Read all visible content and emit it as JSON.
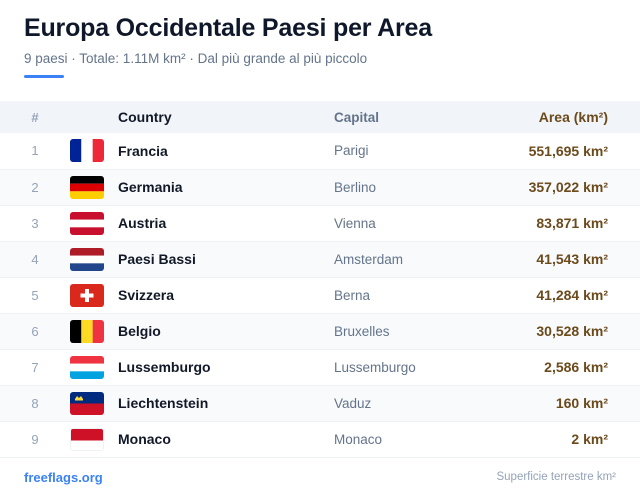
{
  "header": {
    "title": "Europa Occidentale Paesi per Area",
    "subtitle": "9 paesi · Totale: 1.11M km² · Dal più grande al più piccolo"
  },
  "table": {
    "columns": {
      "rank": "#",
      "country": "Country",
      "capital": "Capital",
      "area": "Area (km²)"
    },
    "rows": [
      {
        "rank": "1",
        "country": "Francia",
        "capital": "Parigi",
        "area": "551,695 km²",
        "flag": "france-flag-icon"
      },
      {
        "rank": "2",
        "country": "Germania",
        "capital": "Berlino",
        "area": "357,022 km²",
        "flag": "germany-flag-icon"
      },
      {
        "rank": "3",
        "country": "Austria",
        "capital": "Vienna",
        "area": "83,871 km²",
        "flag": "austria-flag-icon"
      },
      {
        "rank": "4",
        "country": "Paesi Bassi",
        "capital": "Amsterdam",
        "area": "41,543 km²",
        "flag": "netherlands-flag-icon"
      },
      {
        "rank": "5",
        "country": "Svizzera",
        "capital": "Berna",
        "area": "41,284 km²",
        "flag": "switzerland-flag-icon"
      },
      {
        "rank": "6",
        "country": "Belgio",
        "capital": "Bruxelles",
        "area": "30,528 km²",
        "flag": "belgium-flag-icon"
      },
      {
        "rank": "7",
        "country": "Lussemburgo",
        "capital": "Lussemburgo",
        "area": "2,586 km²",
        "flag": "luxembourg-flag-icon"
      },
      {
        "rank": "8",
        "country": "Liechtenstein",
        "capital": "Vaduz",
        "area": "160 km²",
        "flag": "liechtenstein-flag-icon"
      },
      {
        "rank": "9",
        "country": "Monaco",
        "capital": "Monaco",
        "area": "2 km²",
        "flag": "monaco-flag-icon"
      }
    ]
  },
  "footer": {
    "link": "freeflags.org",
    "note": "Superficie terrestre km²"
  },
  "colors": {
    "accent": "#3b82f6",
    "area_text": "#6b4a1c",
    "header_bg": "#f1f5f9",
    "stripe_bg": "#f8fafc"
  }
}
